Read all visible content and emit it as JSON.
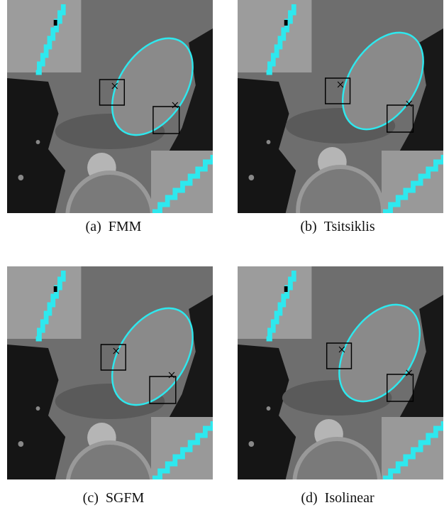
{
  "panels": [
    {
      "label": "(a)",
      "name": "FMM"
    },
    {
      "label": "(b)",
      "name": "Tsitsiklis"
    },
    {
      "label": "(c)",
      "name": "SGFM"
    },
    {
      "label": "(d)",
      "name": "Isolinear"
    }
  ]
}
